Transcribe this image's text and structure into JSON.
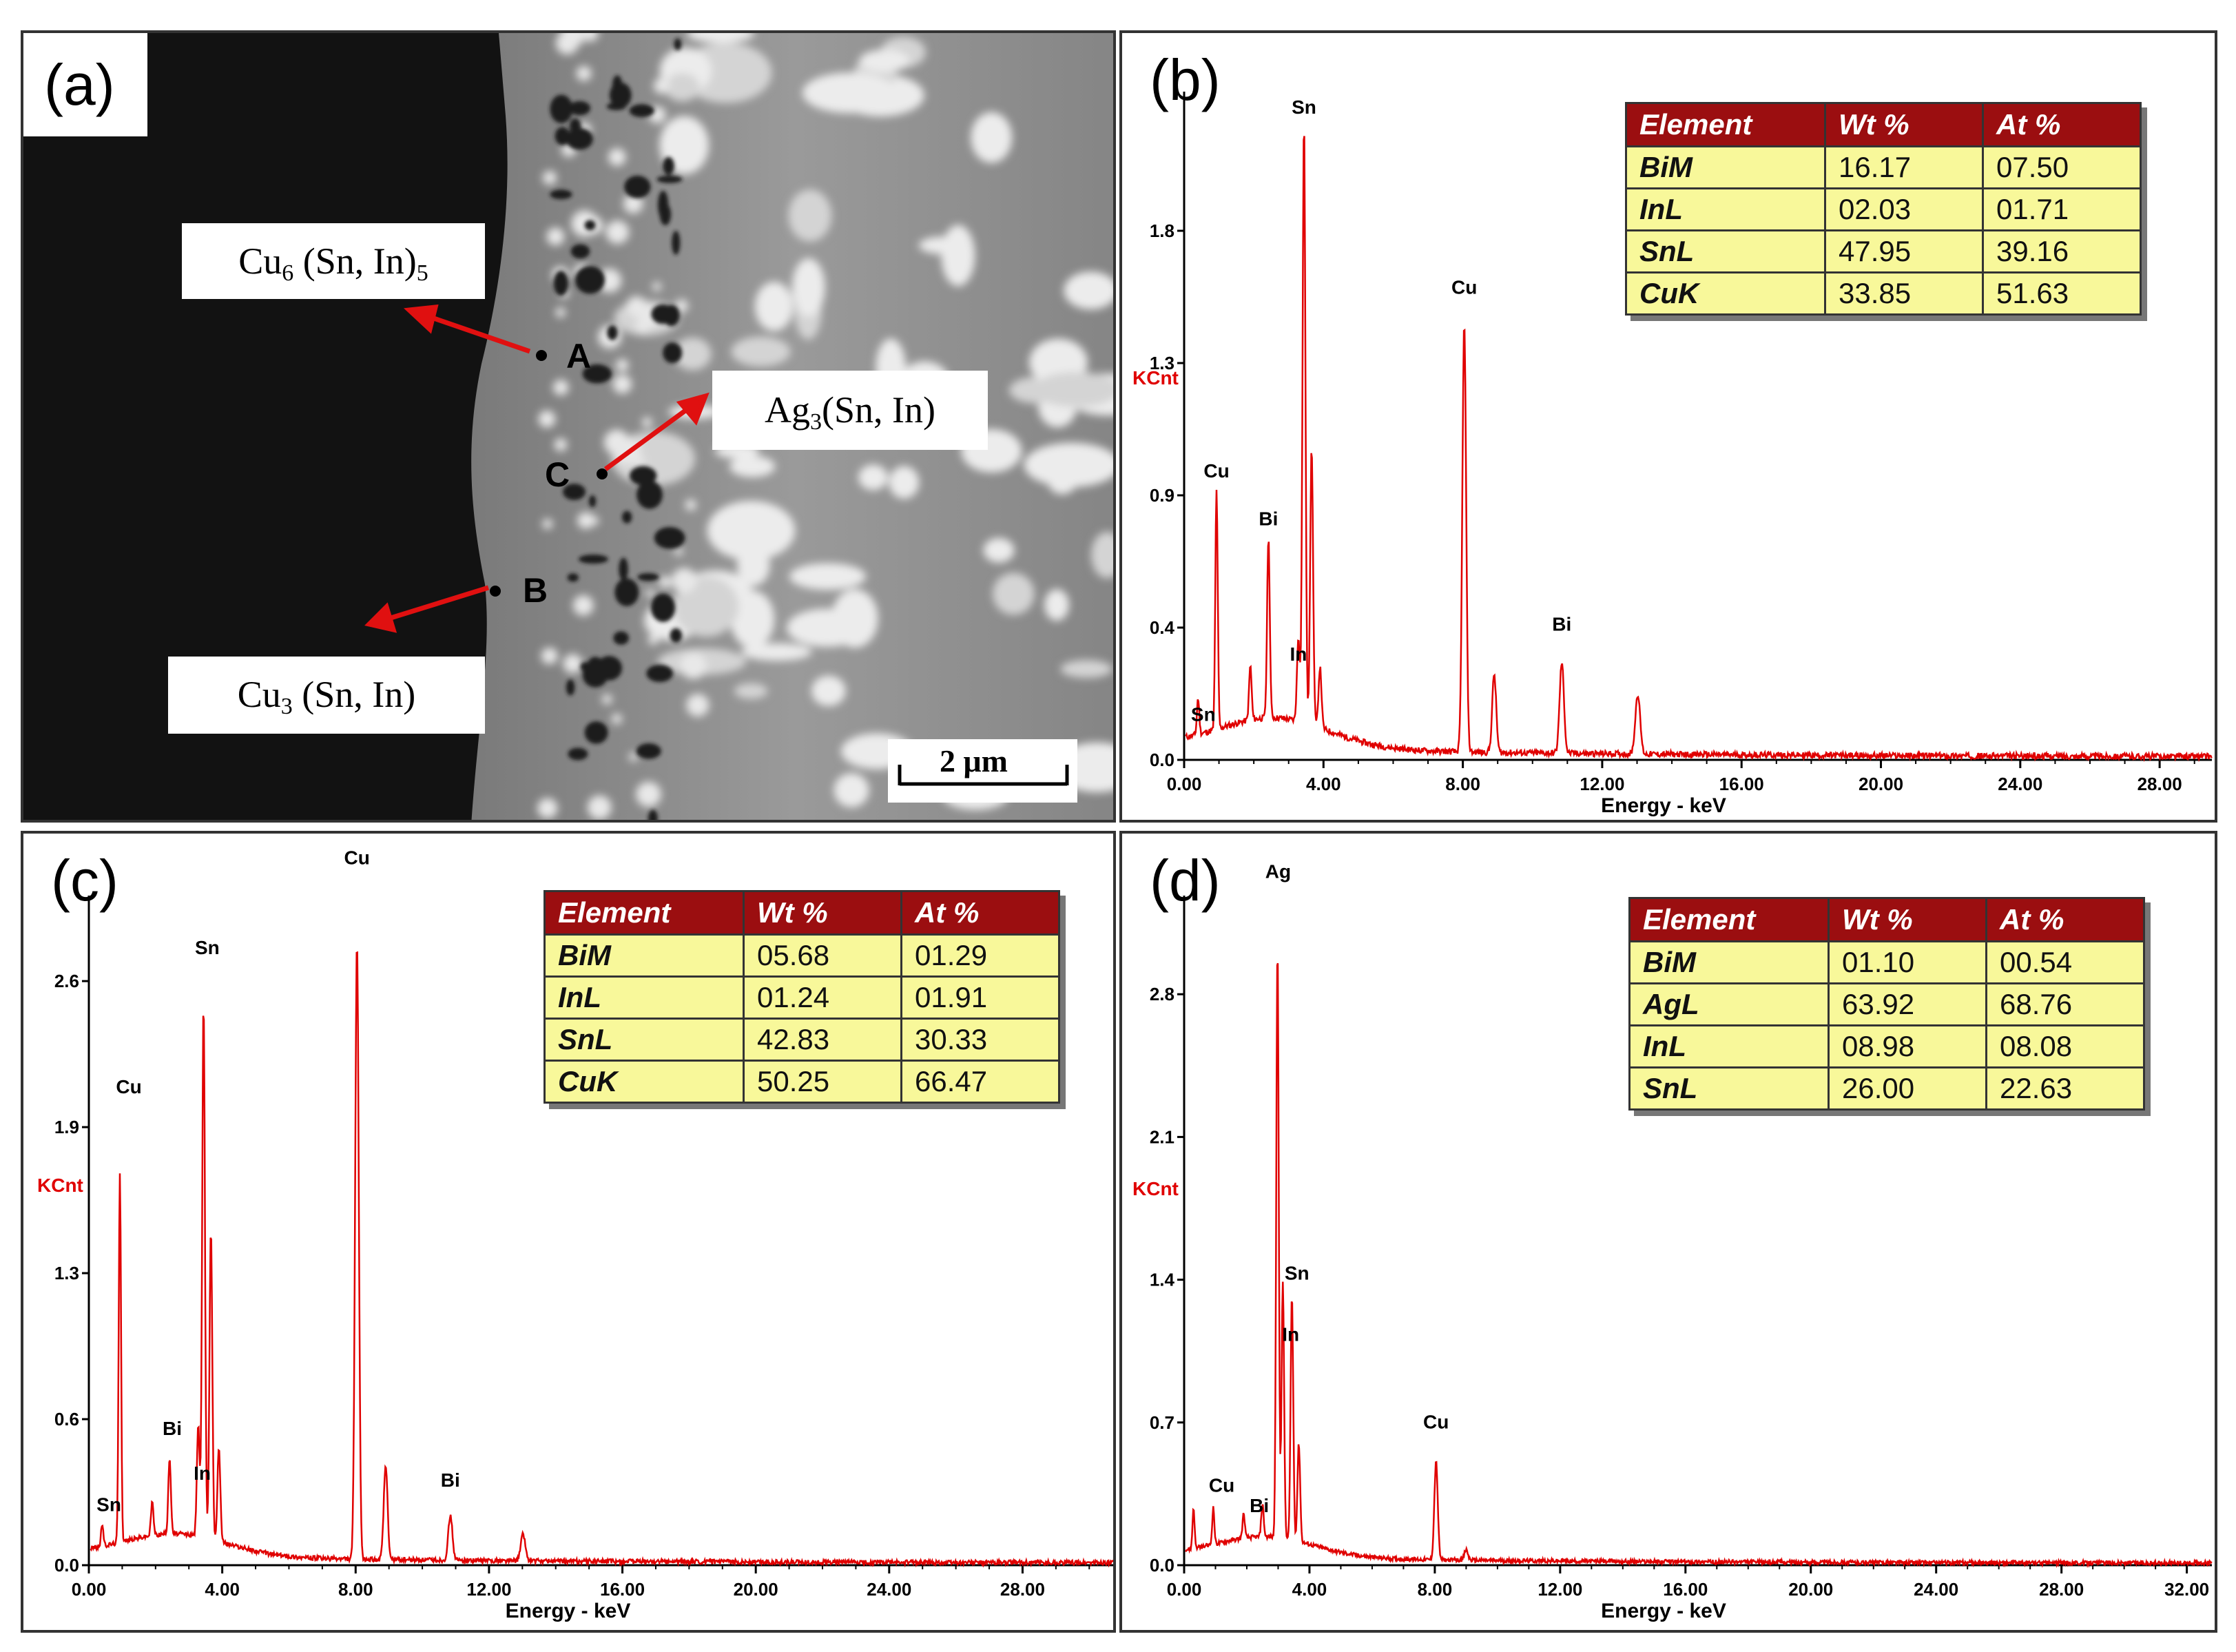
{
  "colors": {
    "spectrum": "#e00000",
    "axis": "#000000",
    "table_header": "#9b0e10",
    "table_body": "#f8f89a"
  },
  "panel_a": {
    "letter": "(a)",
    "labels": {
      "cu6": {
        "base": "Cu",
        "sub1": "6",
        "mid": " (Sn, In)",
        "sub2": "5"
      },
      "ag3": {
        "base": "Ag",
        "sub1": "3",
        "mid": "(Sn, In)"
      },
      "cu3": {
        "base": "Cu",
        "sub1": "3",
        "mid": " (Sn, In)"
      }
    },
    "points": [
      "A",
      "B",
      "C"
    ],
    "scale_bar": "2 μm"
  },
  "chart_data": [
    {
      "panel": "b",
      "letter": "(b)",
      "type": "line",
      "xlabel": "Energy - keV",
      "ylabel": "KCnt",
      "xlim": [
        0,
        29.5
      ],
      "ylim": [
        0,
        2.2
      ],
      "xticks": [
        "0.00",
        "4.00",
        "8.00",
        "12.00",
        "16.00",
        "20.00",
        "24.00",
        "28.00"
      ],
      "xtick_values": [
        0,
        4,
        8,
        12,
        16,
        20,
        24,
        28
      ],
      "yticks": [
        "0.0",
        "0.4",
        "0.9",
        "1.3",
        "1.8"
      ],
      "ytick_values": [
        0.0,
        0.44,
        0.88,
        1.32,
        1.76
      ],
      "peaks": [
        [
          0.4,
          0.12
        ],
        [
          0.93,
          0.8
        ],
        [
          1.9,
          0.18
        ],
        [
          2.42,
          0.6
        ],
        [
          3.28,
          0.28
        ],
        [
          3.44,
          2.0
        ],
        [
          3.66,
          0.92
        ],
        [
          3.9,
          0.2
        ],
        [
          8.04,
          1.42
        ],
        [
          8.9,
          0.26
        ],
        [
          10.84,
          0.3
        ],
        [
          13.02,
          0.2
        ]
      ],
      "annotations": [
        {
          "text": "Sn",
          "x": 3.44,
          "y": 2.15
        },
        {
          "text": "Cu",
          "x": 8.04,
          "y": 1.55
        },
        {
          "text": "Cu",
          "x": 0.93,
          "y": 0.94
        },
        {
          "text": "Bi",
          "x": 2.42,
          "y": 0.78
        },
        {
          "text": "In",
          "x": 3.28,
          "y": 0.33
        },
        {
          "text": "Sn",
          "x": 0.55,
          "y": 0.13
        },
        {
          "text": "Bi",
          "x": 10.84,
          "y": 0.43
        }
      ],
      "table": {
        "headers": [
          "Element",
          "Wt %",
          "At %"
        ],
        "rows": [
          [
            "BiM",
            "16.17",
            "07.50"
          ],
          [
            "InL",
            "02.03",
            "01.71"
          ],
          [
            "SnL",
            "47.95",
            "39.16"
          ],
          [
            "CuK",
            "33.85",
            "51.63"
          ]
        ]
      }
    },
    {
      "panel": "c",
      "letter": "(c)",
      "type": "line",
      "xlabel": "Energy - keV",
      "ylabel": "KCnt",
      "xlim": [
        0,
        30.8
      ],
      "ylim": [
        0,
        2.95
      ],
      "xticks": [
        "0.00",
        "4.00",
        "8.00",
        "12.00",
        "16.00",
        "20.00",
        "24.00",
        "28.00"
      ],
      "xtick_values": [
        0,
        4,
        8,
        12,
        16,
        20,
        24,
        28
      ],
      "yticks": [
        "0.0",
        "0.6",
        "1.3",
        "1.9",
        "2.6"
      ],
      "ytick_values": [
        0.0,
        0.65,
        1.3,
        1.95,
        2.6
      ],
      "peaks": [
        [
          0.4,
          0.1
        ],
        [
          0.93,
          1.65
        ],
        [
          1.9,
          0.15
        ],
        [
          2.42,
          0.34
        ],
        [
          3.28,
          0.5
        ],
        [
          3.44,
          2.38
        ],
        [
          3.66,
          1.38
        ],
        [
          3.9,
          0.42
        ],
        [
          8.04,
          2.75
        ],
        [
          8.9,
          0.42
        ],
        [
          10.84,
          0.2
        ],
        [
          13.02,
          0.12
        ]
      ],
      "annotations": [
        {
          "text": "Cu",
          "x": 8.04,
          "y": 3.12
        },
        {
          "text": "Sn",
          "x": 3.55,
          "y": 2.72
        },
        {
          "text": "Cu",
          "x": 1.2,
          "y": 2.1
        },
        {
          "text": "Bi",
          "x": 2.5,
          "y": 0.58
        },
        {
          "text": "In",
          "x": 3.4,
          "y": 0.38
        },
        {
          "text": "Sn",
          "x": 0.6,
          "y": 0.24
        },
        {
          "text": "Bi",
          "x": 10.84,
          "y": 0.35
        }
      ],
      "table": {
        "headers": [
          "Element",
          "Wt %",
          "At %"
        ],
        "rows": [
          [
            "BiM",
            "05.68",
            "01.29"
          ],
          [
            "InL",
            "01.24",
            "01.91"
          ],
          [
            "SnL",
            "42.83",
            "30.33"
          ],
          [
            "CuK",
            "50.25",
            "66.47"
          ]
        ]
      }
    },
    {
      "panel": "d",
      "letter": "(d)",
      "type": "line",
      "xlabel": "Energy - keV",
      "ylabel": "KCnt",
      "xlim": [
        0,
        32.8
      ],
      "ylim": [
        0,
        3.25
      ],
      "xticks": [
        "0.00",
        "4.00",
        "8.00",
        "12.00",
        "16.00",
        "20.00",
        "24.00",
        "28.00",
        "32.00"
      ],
      "xtick_values": [
        0,
        4,
        8,
        12,
        16,
        20,
        24,
        28,
        32
      ],
      "yticks": [
        "0.0",
        "0.7",
        "1.4",
        "2.1",
        "2.8"
      ],
      "ytick_values": [
        0.0,
        0.7,
        1.4,
        2.1,
        2.8
      ],
      "peaks": [
        [
          0.3,
          0.2
        ],
        [
          0.93,
          0.18
        ],
        [
          1.9,
          0.12
        ],
        [
          2.5,
          0.16
        ],
        [
          2.98,
          2.9
        ],
        [
          3.15,
          1.25
        ],
        [
          3.44,
          1.2
        ],
        [
          3.66,
          0.48
        ],
        [
          8.04,
          0.48
        ],
        [
          9.0,
          0.05
        ]
      ],
      "annotations": [
        {
          "text": "Ag",
          "x": 3.0,
          "y": 3.37
        },
        {
          "text": "Sn",
          "x": 3.6,
          "y": 1.4
        },
        {
          "text": "In",
          "x": 3.4,
          "y": 1.1
        },
        {
          "text": "Cu",
          "x": 8.04,
          "y": 0.67
        },
        {
          "text": "Cu",
          "x": 1.2,
          "y": 0.36
        },
        {
          "text": "Bi",
          "x": 2.4,
          "y": 0.26
        }
      ],
      "table": {
        "headers": [
          "Element",
          "Wt %",
          "At %"
        ],
        "rows": [
          [
            "BiM",
            "01.10",
            "00.54"
          ],
          [
            "AgL",
            "63.92",
            "68.76"
          ],
          [
            "InL",
            "08.98",
            "08.08"
          ],
          [
            "SnL",
            "26.00",
            "22.63"
          ]
        ]
      }
    }
  ]
}
